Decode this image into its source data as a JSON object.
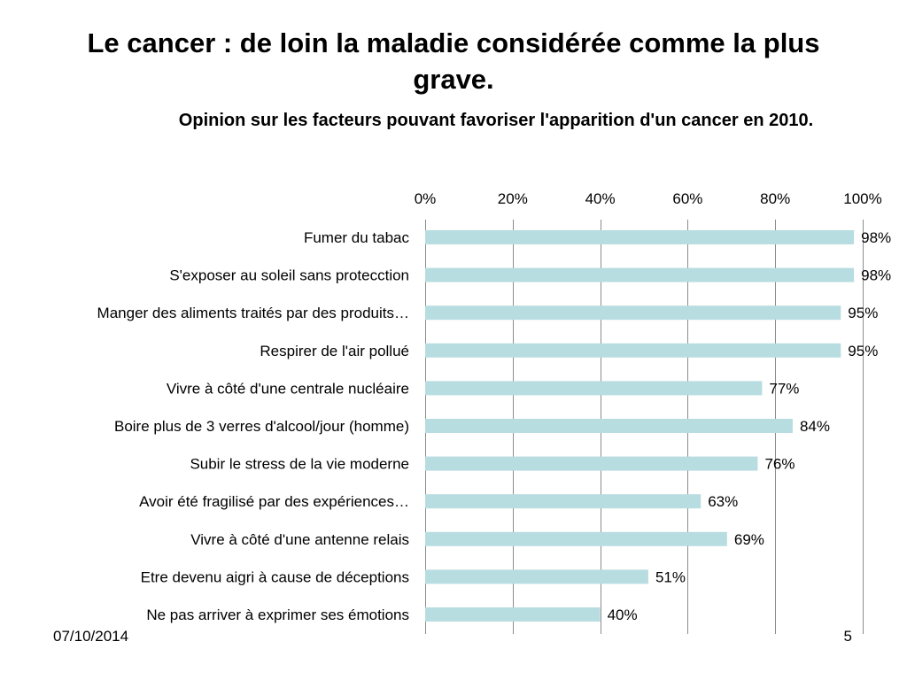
{
  "slide": {
    "title": "Le cancer : de loin la maladie considérée comme la plus grave.",
    "date": "07/10/2014",
    "page_number": "5"
  },
  "colors": {
    "bar": "#b8dde1",
    "grid": "#8c8c8c"
  },
  "chart_data": {
    "type": "bar",
    "orientation": "horizontal",
    "title": "Opinion sur les facteurs pouvant favoriser l'apparition d'un cancer en 2010.",
    "xlabel": "",
    "ylabel": "",
    "x_axis_position": "top",
    "xlim": [
      0,
      100
    ],
    "x_ticks": [
      0,
      20,
      40,
      60,
      80,
      100
    ],
    "x_tick_labels": [
      "0%",
      "20%",
      "40%",
      "60%",
      "80%",
      "100%"
    ],
    "grid": true,
    "legend": "none",
    "categories": [
      "Fumer du tabac",
      "S'exposer au soleil sans protecction",
      "Manger des aliments traités par des produits…",
      "Respirer de l'air pollué",
      "Vivre à côté d'une centrale nucléaire",
      "Boire plus de 3 verres d'alcool/jour (homme)",
      "Subir le stress de la vie moderne",
      "Avoir été fragilisé par des expériences…",
      "Vivre à côté d'une antenne relais",
      "Etre devenu aigri à cause de déceptions",
      "Ne pas arriver à exprimer ses émotions"
    ],
    "values": [
      98,
      98,
      95,
      95,
      77,
      84,
      76,
      63,
      69,
      51,
      40
    ],
    "data_labels": [
      "98%",
      "98%",
      "95%",
      "95%",
      "77%",
      "84%",
      "76%",
      "63%",
      "69%",
      "51%",
      "40%"
    ]
  }
}
